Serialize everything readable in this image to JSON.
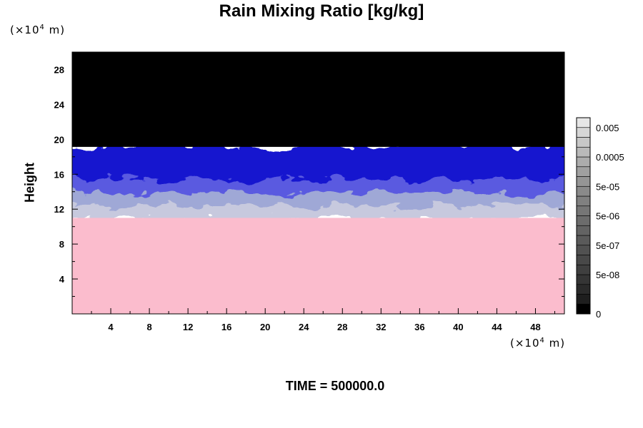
{
  "chart_data": {
    "type": "heatmap",
    "title": "Rain Mixing Ratio [kg/kg]",
    "xlabel": "",
    "ylabel": "Height",
    "x_unit": "(×10⁴ m)",
    "y_unit": "(×10⁴ m)",
    "x_unit_base": "(×10",
    "y_unit_base": "(×10",
    "unit_exponent": "4",
    "unit_suffix": " m)",
    "xlim": [
      0,
      51
    ],
    "ylim": [
      0,
      30
    ],
    "x_ticks": [
      4,
      8,
      12,
      16,
      20,
      24,
      28,
      32,
      36,
      40,
      44,
      48
    ],
    "y_ticks": [
      4,
      8,
      12,
      16,
      20,
      24,
      28
    ],
    "x_tick_labels": [
      "4",
      "8",
      "12",
      "16",
      "20",
      "24",
      "28",
      "32",
      "36",
      "40",
      "44",
      "48"
    ],
    "y_tick_labels": [
      "4",
      "8",
      "12",
      "16",
      "20",
      "24",
      "28"
    ],
    "field_bands": [
      {
        "from": 0,
        "to": 11,
        "color": "#fbbccd"
      },
      {
        "from": 11,
        "to": 12.6,
        "color": "#c7c9de"
      },
      {
        "from": 12.6,
        "to": 14,
        "color": "#9fa8d6"
      },
      {
        "from": 14,
        "to": 15.6,
        "color": "#5a5ae0"
      },
      {
        "from": 15.6,
        "to": 19.3,
        "color": "#1414cf"
      },
      {
        "from": 19.3,
        "to": 30,
        "color": "#000000"
      }
    ],
    "colorbar": {
      "label_values": [
        "0.005",
        "0.0005",
        "5e-05",
        "5e-06",
        "5e-07",
        "5e-08",
        "0"
      ],
      "levels": 20,
      "colors": [
        "#000000",
        "#1e1e1e",
        "#2a2a2a",
        "#353535",
        "#3f3f3f",
        "#484848",
        "#515151",
        "#5a5a5a",
        "#636363",
        "#6c6c6c",
        "#767676",
        "#808080",
        "#8a8a8a",
        "#959595",
        "#a0a0a0",
        "#acacac",
        "#b9b9b9",
        "#c7c7c7",
        "#d6d6d6",
        "#e6e6e6"
      ]
    },
    "timestamp": "TIME = 500000.0"
  }
}
